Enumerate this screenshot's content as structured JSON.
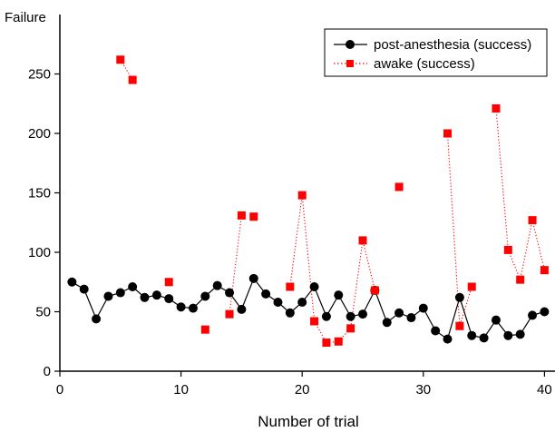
{
  "chart_data": {
    "type": "line",
    "ylabel": "Failure",
    "xlabel": "Number of trial",
    "xlim": [
      0,
      41
    ],
    "ylim": [
      0,
      300
    ],
    "x_ticks": [
      "0",
      "10",
      "20",
      "30",
      "40"
    ],
    "y_ticks": [
      "0",
      "50",
      "100",
      "150",
      "200",
      "250"
    ],
    "grid": false,
    "legend_position": "top-right",
    "series": [
      {
        "name": "post-anesthesia (success)",
        "color": "#000000",
        "marker": "circle",
        "line": "solid",
        "points": [
          [
            1,
            75
          ],
          [
            2,
            69
          ],
          [
            3,
            44
          ],
          [
            4,
            63
          ],
          [
            5,
            66
          ],
          [
            6,
            71
          ],
          [
            7,
            62
          ],
          [
            8,
            64
          ],
          [
            9,
            61
          ],
          [
            10,
            54
          ],
          [
            11,
            53
          ],
          [
            12,
            63
          ],
          [
            13,
            72
          ],
          [
            14,
            66
          ],
          [
            15,
            52
          ],
          [
            16,
            78
          ],
          [
            17,
            65
          ],
          [
            18,
            58
          ],
          [
            19,
            49
          ],
          [
            20,
            58
          ],
          [
            21,
            71
          ],
          [
            22,
            46
          ],
          [
            23,
            64
          ],
          [
            24,
            46
          ],
          [
            25,
            48
          ],
          [
            26,
            68
          ],
          [
            27,
            41
          ],
          [
            28,
            49
          ],
          [
            29,
            45
          ],
          [
            30,
            53
          ],
          [
            31,
            34
          ],
          [
            32,
            27
          ],
          [
            33,
            62
          ],
          [
            34,
            30
          ],
          [
            35,
            28
          ],
          [
            36,
            43
          ],
          [
            37,
            30
          ],
          [
            38,
            31
          ],
          [
            39,
            47
          ],
          [
            40,
            50
          ]
        ]
      },
      {
        "name": "awake (success)",
        "color": "#ff0000",
        "marker": "square",
        "line": "dotted",
        "points": [
          [
            5,
            262
          ],
          [
            6,
            245
          ],
          [
            9,
            75
          ],
          [
            12,
            35
          ],
          [
            14,
            48
          ],
          [
            15,
            131
          ],
          [
            16,
            130
          ],
          [
            19,
            71
          ],
          [
            20,
            148
          ],
          [
            21,
            42
          ],
          [
            22,
            24
          ],
          [
            23,
            25
          ],
          [
            24,
            36
          ],
          [
            25,
            110
          ],
          [
            26,
            68
          ],
          [
            28,
            155
          ],
          [
            32,
            200
          ],
          [
            33,
            38
          ],
          [
            34,
            71
          ],
          [
            36,
            221
          ],
          [
            37,
            102
          ],
          [
            38,
            77
          ],
          [
            39,
            127
          ],
          [
            40,
            85
          ]
        ],
        "segments": [
          [
            [
              5,
              262
            ],
            [
              6,
              245
            ]
          ],
          [
            [
              14,
              48
            ],
            [
              15,
              131
            ]
          ],
          [
            [
              19,
              71
            ],
            [
              20,
              148
            ],
            [
              21,
              42
            ],
            [
              22,
              24
            ],
            [
              23,
              25
            ],
            [
              24,
              36
            ],
            [
              25,
              110
            ],
            [
              26,
              68
            ]
          ],
          [
            [
              32,
              200
            ],
            [
              33,
              38
            ],
            [
              34,
              71
            ]
          ],
          [
            [
              36,
              221
            ],
            [
              37,
              102
            ],
            [
              38,
              77
            ],
            [
              39,
              127
            ],
            [
              40,
              85
            ]
          ]
        ]
      }
    ]
  }
}
